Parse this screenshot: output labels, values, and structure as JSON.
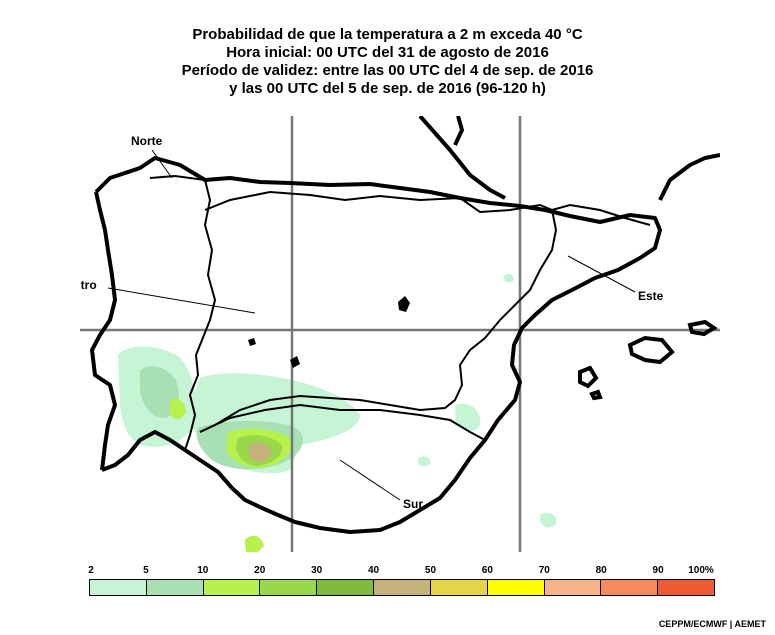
{
  "title": {
    "line1": "Probabilidad de que la temperatura a 2 m exceda 40 °C",
    "line2": "Hora inicial: 00 UTC del 31 de agosto de 2016",
    "line3": "Período de validez: entre las 00 UTC del 4 de sep. de 2016",
    "line4": "y las 00 UTC del 5 de sep. de 2016 (96-120 h)"
  },
  "regions": {
    "norte": "Norte",
    "centro": "Centro",
    "este": "Este",
    "sur": "Sur"
  },
  "legend": {
    "ticks": [
      "2",
      "5",
      "10",
      "20",
      "30",
      "40",
      "50",
      "60",
      "70",
      "80",
      "90",
      "100%"
    ],
    "colors": [
      "#c6f5d6",
      "#a8e0b4",
      "#b7f24c",
      "#98d84a",
      "#7fbb3c",
      "#c4b27a",
      "#e4d447",
      "#ffff00",
      "#f8b489",
      "#f58a5c",
      "#ee5a34"
    ]
  },
  "credit": "CEPPM/ECMWF | AEMET"
}
